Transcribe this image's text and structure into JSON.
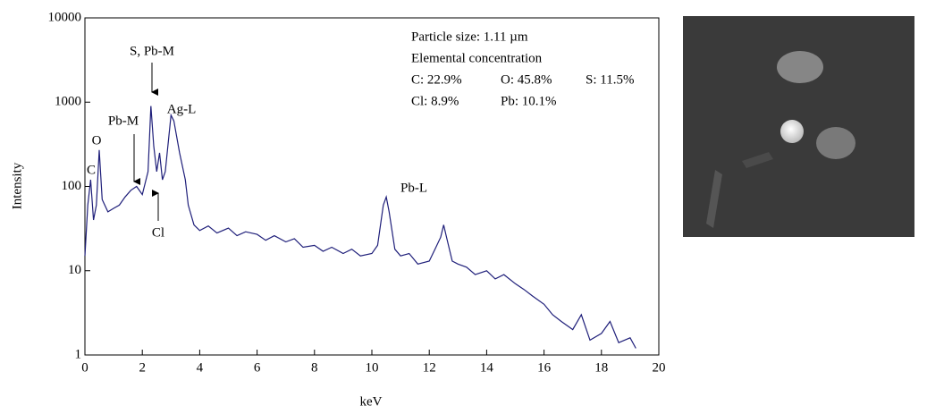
{
  "chart_data": {
    "type": "line",
    "xlabel": "keV",
    "ylabel": "Intensity",
    "color": "#1f1f7a",
    "log_y": true,
    "xlim": [
      0,
      20
    ],
    "xticks": [
      0,
      2,
      4,
      6,
      8,
      10,
      12,
      14,
      16,
      18,
      20
    ],
    "ylim": [
      1,
      10000
    ],
    "yticks": [
      1,
      10,
      100,
      1000,
      10000
    ],
    "x": [
      0.0,
      0.1,
      0.2,
      0.3,
      0.4,
      0.5,
      0.6,
      0.8,
      1.0,
      1.2,
      1.4,
      1.6,
      1.8,
      2.0,
      2.2,
      2.3,
      2.4,
      2.5,
      2.6,
      2.7,
      2.8,
      3.0,
      3.1,
      3.3,
      3.5,
      3.6,
      3.8,
      4.0,
      4.3,
      4.6,
      5.0,
      5.3,
      5.6,
      6.0,
      6.3,
      6.6,
      7.0,
      7.3,
      7.6,
      8.0,
      8.3,
      8.6,
      9.0,
      9.3,
      9.6,
      10.0,
      10.2,
      10.4,
      10.5,
      10.6,
      10.8,
      11.0,
      11.3,
      11.6,
      12.0,
      12.2,
      12.4,
      12.5,
      12.6,
      12.8,
      13.0,
      13.3,
      13.6,
      14.0,
      14.3,
      14.6,
      15.0,
      15.3,
      15.6,
      16.0,
      16.3,
      16.6,
      17.0,
      17.3,
      17.6,
      18.0,
      18.3,
      18.6,
      19.0,
      19.2
    ],
    "values": [
      15,
      60,
      120,
      40,
      60,
      270,
      70,
      50,
      55,
      60,
      75,
      90,
      100,
      80,
      150,
      900,
      300,
      150,
      250,
      120,
      150,
      700,
      600,
      250,
      120,
      60,
      35,
      30,
      34,
      28,
      32,
      26,
      29,
      27,
      23,
      26,
      22,
      24,
      19,
      20,
      17,
      19,
      16,
      18,
      15,
      16,
      20,
      60,
      75,
      50,
      18,
      15,
      16,
      12,
      13,
      18,
      25,
      35,
      25,
      13,
      12,
      11,
      9,
      10,
      8,
      9,
      7,
      6,
      5,
      4,
      3,
      2.5,
      2,
      3,
      1.5,
      1.8,
      2.5,
      1.4,
      1.6,
      1.2
    ],
    "annotations": [
      "S, Pb-M",
      "Pb-M",
      "Ag-L",
      "O",
      "C",
      "Cl",
      "Pb-L"
    ],
    "info_box": [
      "Particle size: 1.11 µm",
      "Elemental concentration",
      "C: 22.9%",
      "O: 45.8%",
      "S: 11.5%",
      "Cl: 8.9%",
      "Pb: 10.1%"
    ]
  }
}
